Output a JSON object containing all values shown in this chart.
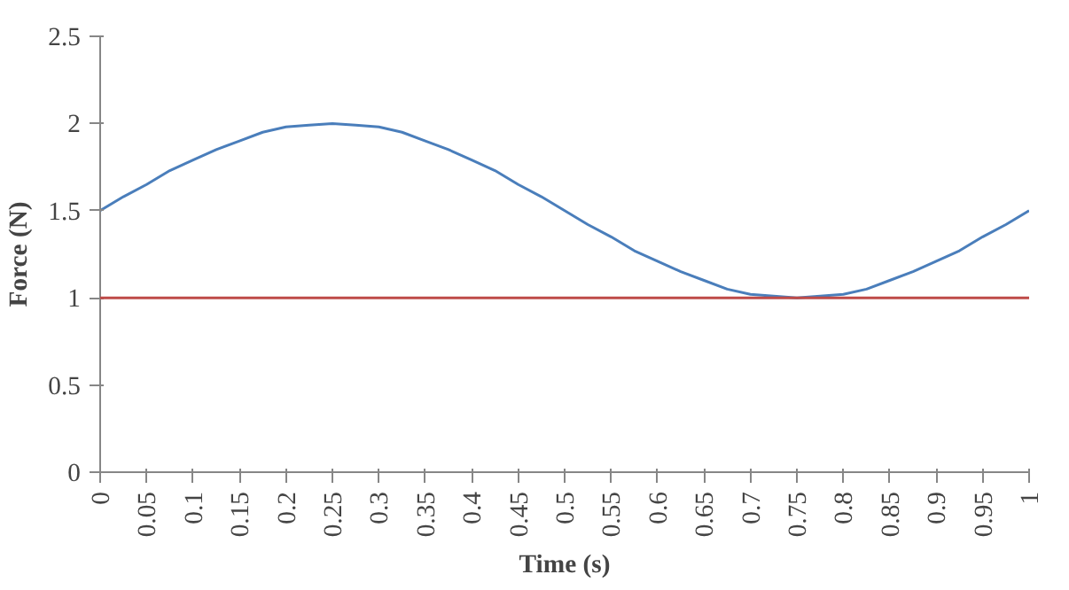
{
  "chart_data": {
    "type": "line",
    "xlabel": "Time (s)",
    "ylabel": "Force (N)",
    "x": [
      0,
      0.025,
      0.05,
      0.075,
      0.1,
      0.125,
      0.15,
      0.175,
      0.2,
      0.225,
      0.25,
      0.275,
      0.3,
      0.325,
      0.35,
      0.375,
      0.4,
      0.425,
      0.45,
      0.475,
      0.5,
      0.525,
      0.55,
      0.575,
      0.6,
      0.625,
      0.65,
      0.675,
      0.7,
      0.725,
      0.75,
      0.775,
      0.8,
      0.825,
      0.85,
      0.875,
      0.9,
      0.925,
      0.95,
      0.975,
      1
    ],
    "series": [
      {
        "color": "#4a7ebb",
        "values": [
          1.5,
          1.58,
          1.65,
          1.73,
          1.79,
          1.85,
          1.9,
          1.95,
          1.98,
          1.99,
          2,
          1.99,
          1.98,
          1.95,
          1.9,
          1.85,
          1.79,
          1.73,
          1.65,
          1.58,
          1.5,
          1.42,
          1.35,
          1.27,
          1.21,
          1.15,
          1.1,
          1.05,
          1.02,
          1.01,
          1,
          1.01,
          1.02,
          1.05,
          1.1,
          1.15,
          1.21,
          1.27,
          1.35,
          1.42,
          1.5
        ]
      }
    ],
    "ref_lines": [
      {
        "axis": "y",
        "value": 1,
        "color": "#be4b48"
      }
    ],
    "xlim": [
      0,
      1
    ],
    "xticks": [
      0,
      0.05,
      0.1,
      0.15,
      0.2,
      0.25,
      0.3,
      0.35,
      0.4,
      0.45,
      0.5,
      0.55,
      0.6,
      0.65,
      0.7,
      0.75,
      0.8,
      0.85,
      0.9,
      0.95,
      1
    ],
    "ylim": [
      0,
      2.5
    ],
    "yticks": [
      0,
      0.5,
      1,
      1.5,
      2,
      2.5
    ],
    "grid": false,
    "marker": "none",
    "line_style": "solid"
  }
}
